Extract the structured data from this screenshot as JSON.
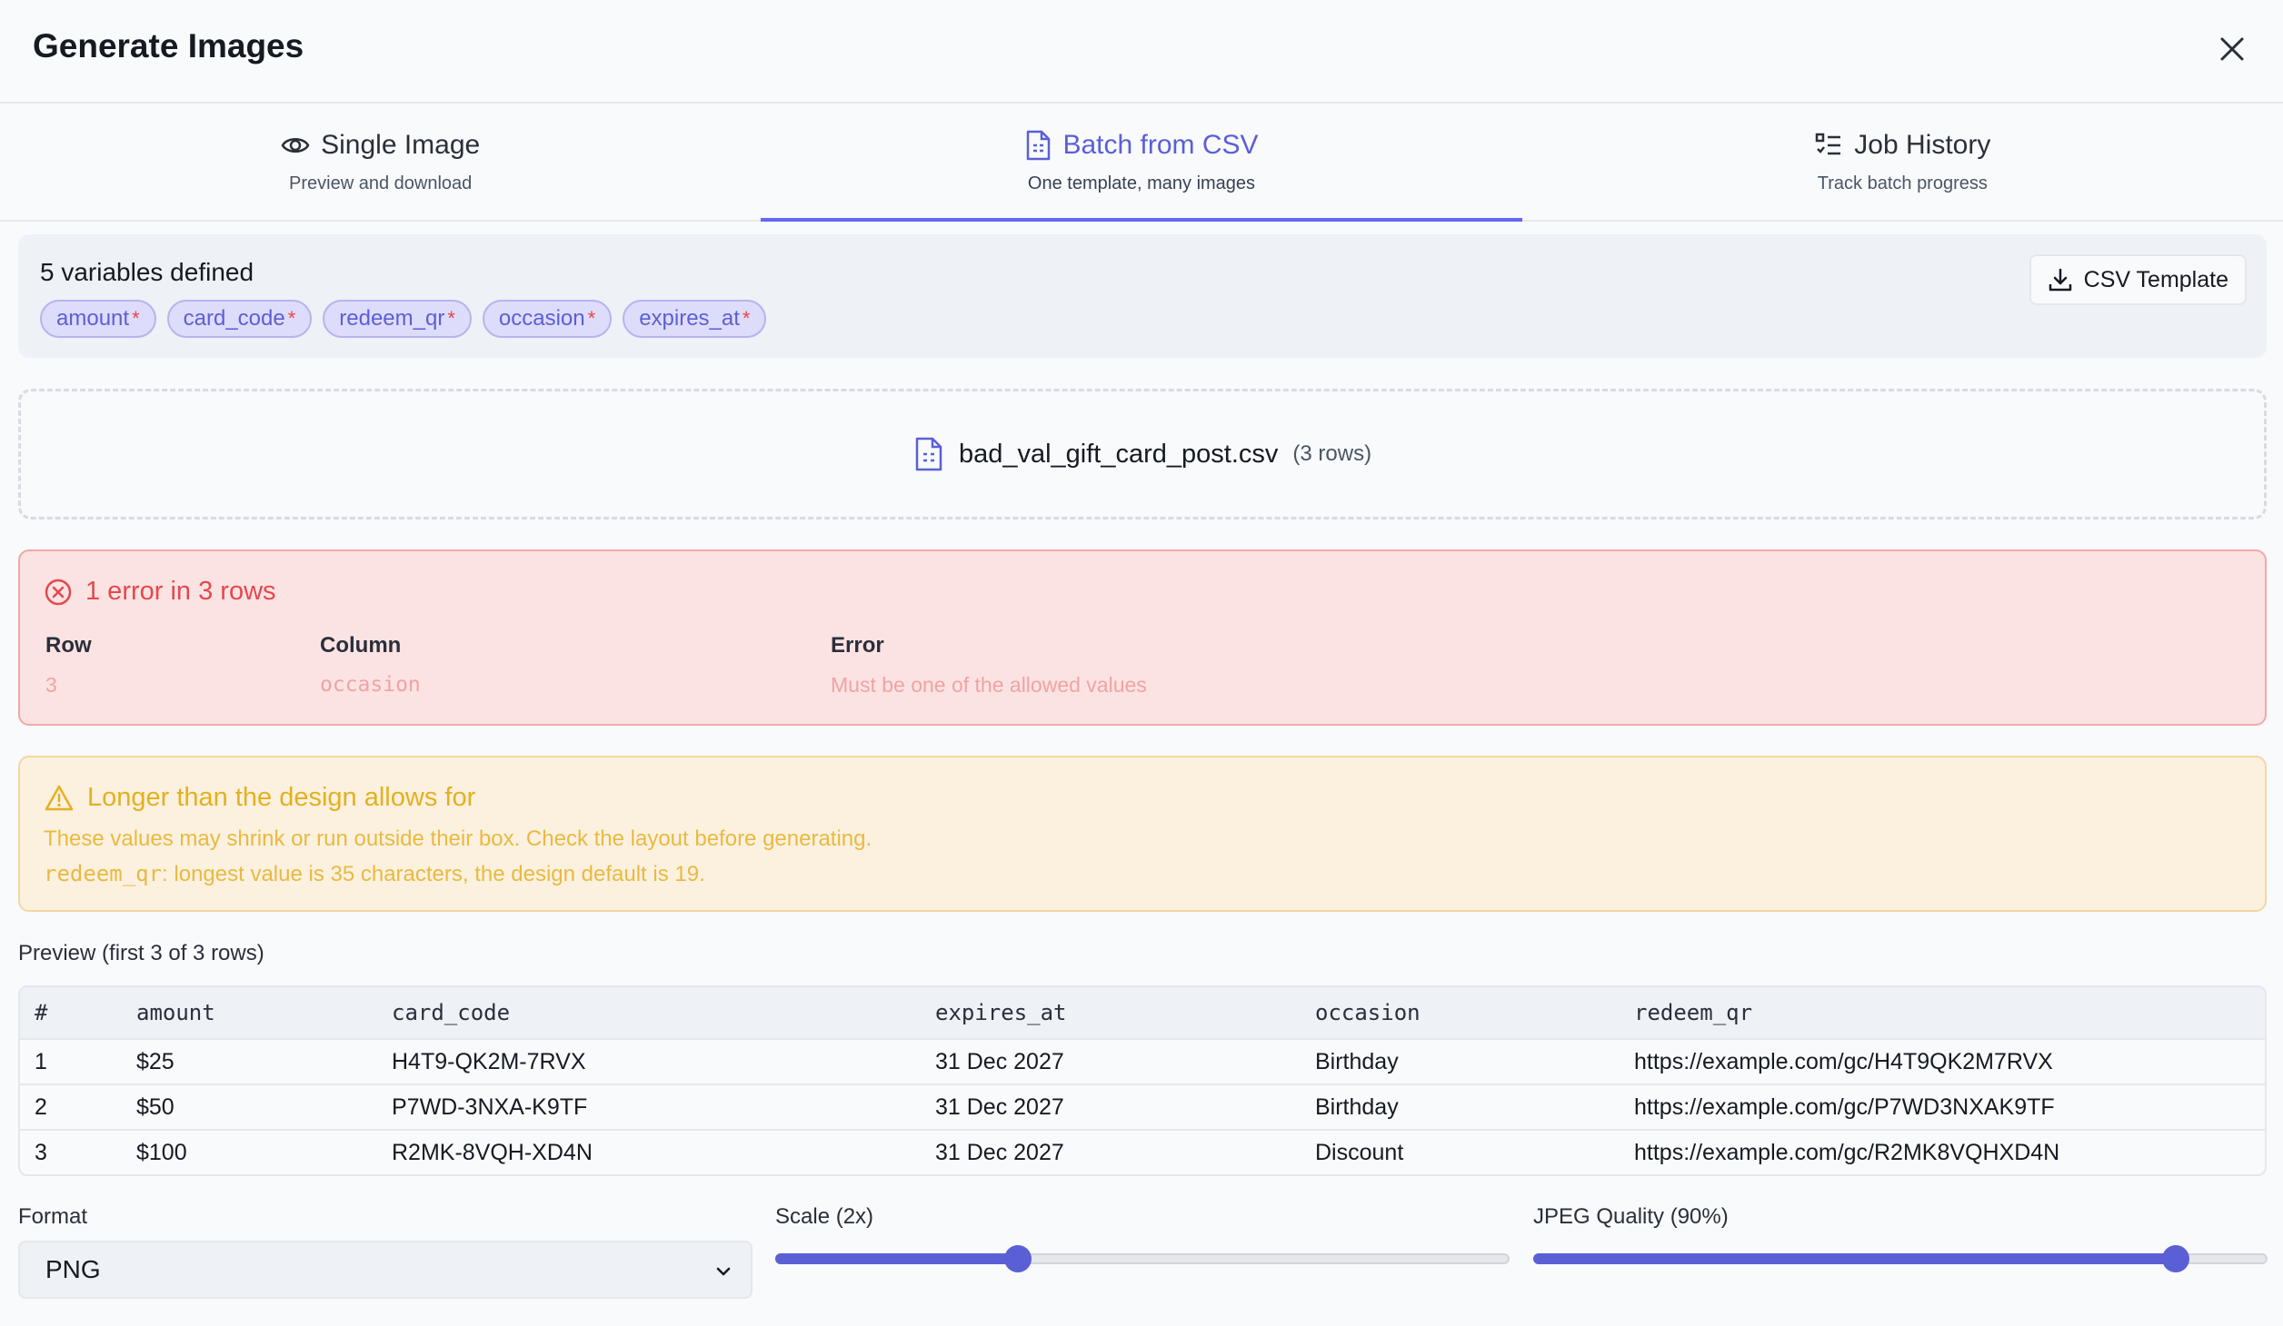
{
  "header": {
    "title": "Generate Images"
  },
  "tabs": [
    {
      "label": "Single Image",
      "sub": "Preview and download",
      "icon": "eye-icon"
    },
    {
      "label": "Batch from CSV",
      "sub": "One template, many images",
      "icon": "document-icon"
    },
    {
      "label": "Job History",
      "sub": "Track batch progress",
      "icon": "list-icon"
    }
  ],
  "variables": {
    "title": "5 variables defined",
    "chips": [
      {
        "name": "amount",
        "req": "*"
      },
      {
        "name": "card_code",
        "req": "*"
      },
      {
        "name": "redeem_qr",
        "req": "*"
      },
      {
        "name": "occasion",
        "req": "*"
      },
      {
        "name": "expires_at",
        "req": "*"
      }
    ],
    "csv_button": "CSV Template"
  },
  "file": {
    "name": "bad_val_gift_card_post.csv",
    "rows": "(3 rows)"
  },
  "errors": {
    "title": "1 error in 3 rows",
    "columns": {
      "row": "Row",
      "column": "Column",
      "error": "Error"
    },
    "items": [
      {
        "row": "3",
        "column": "occasion",
        "error": "Must be one of the allowed values"
      }
    ]
  },
  "warning": {
    "title": "Longer than the design allows for",
    "line1": "These values may shrink or run outside their box. Check the layout before generating.",
    "field": "redeem_qr",
    "line2": ": longest value is 35 characters, the design default is 19."
  },
  "preview": {
    "label": "Preview (first 3 of 3 rows)",
    "headers": [
      "#",
      "amount",
      "card_code",
      "expires_at",
      "occasion",
      "redeem_qr"
    ],
    "rows": [
      [
        "1",
        "$25",
        "H4T9-QK2M-7RVX",
        "31 Dec 2027",
        "Birthday",
        "https://example.com/gc/H4T9QK2M7RVX"
      ],
      [
        "2",
        "$50",
        "P7WD-3NXA-K9TF",
        "31 Dec 2027",
        "Birthday",
        "https://example.com/gc/P7WD3NXAK9TF"
      ],
      [
        "3",
        "$100",
        "R2MK-8VQH-XD4N",
        "31 Dec 2027",
        "Discount",
        "https://example.com/gc/R2MK8VQHXD4N"
      ]
    ]
  },
  "controls": {
    "format_label": "Format",
    "format_value": "PNG",
    "scale_label": "Scale (2x)",
    "scale_fraction": 0.33,
    "quality_label": "JPEG Quality (90%)",
    "quality_fraction": 0.875
  },
  "colors": {
    "accent": "#6366f1",
    "error": "#e5484d",
    "warning": "#e4b020"
  }
}
